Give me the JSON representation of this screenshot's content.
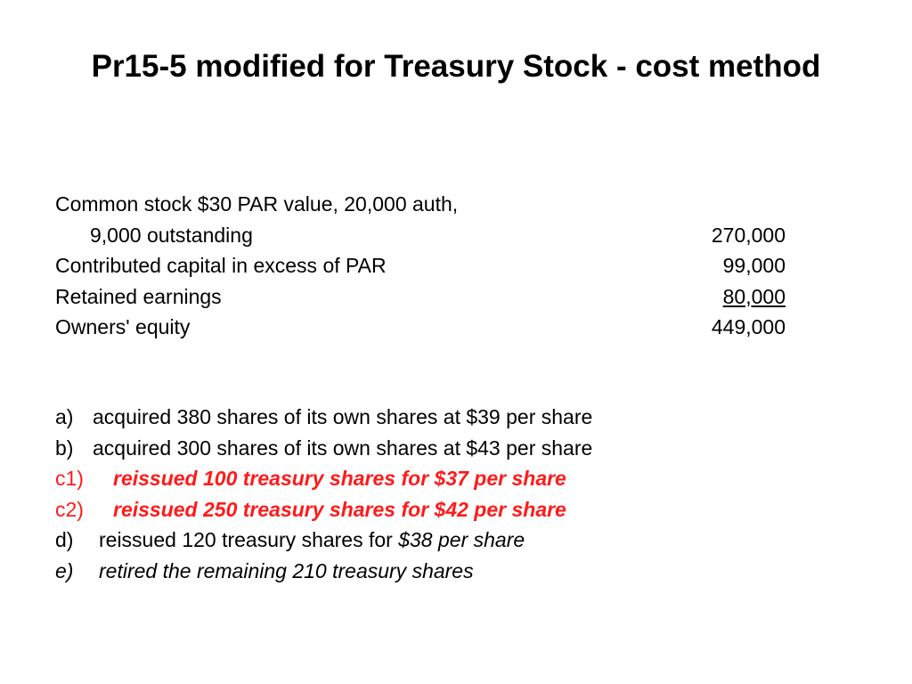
{
  "title": "Pr15-5 modified for Treasury Stock - cost method",
  "equity": {
    "line1_label": "Common stock $30 PAR value, 20,000 auth,",
    "line2_label": "9,000 outstanding",
    "line2_amount": "270,000",
    "line3_label": "Contributed capital in excess of PAR",
    "line3_amount": "99,000",
    "line4_label": "Retained earnings",
    "line4_amount": "80,000",
    "line5_label": "Owners' equity",
    "line5_amount": "449,000"
  },
  "events": {
    "a_letter": "a)",
    "a_text": "acquired 380 shares of its own shares at $39 per share",
    "b_letter": "b)",
    "b_text": "acquired 300 shares of its own shares at $43 per share",
    "c1_letter": "c1)",
    "c1_text": "reissued 100 treasury shares for $37 per share",
    "c2_letter": "c2)",
    "c2_text": "reissued 250 treasury shares for $42 per share",
    "d_letter": "d)",
    "d_text": "reissued 120 treasury shares for",
    "d_price": "$38 per share",
    "e_letter": "e)",
    "e_text": "retired the remaining 210 treasury shares"
  },
  "colors": {
    "highlight": "#ff1a1a",
    "text": "#000000",
    "background": "#ffffff"
  }
}
